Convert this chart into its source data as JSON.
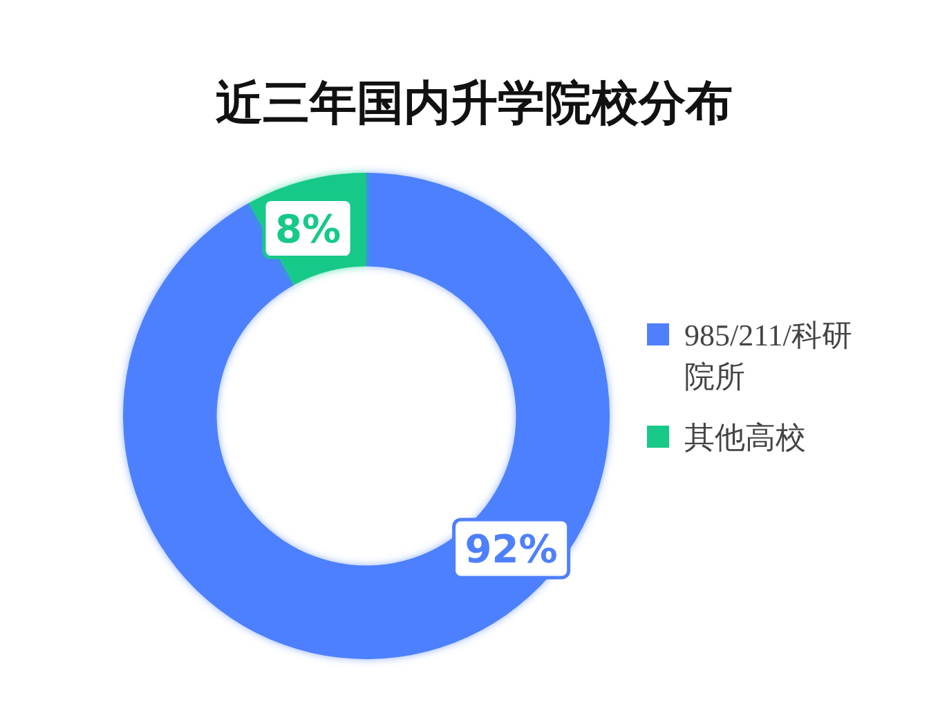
{
  "chart_data": {
    "type": "donut",
    "title": "近三年国内升学院校分布",
    "categories": [
      "985/211/科研院所",
      "其他高校"
    ],
    "values": [
      92,
      8
    ],
    "colors": [
      "#4e80fe",
      "#18c988"
    ],
    "value_labels": [
      "92%",
      "8%"
    ],
    "legend": "right"
  }
}
